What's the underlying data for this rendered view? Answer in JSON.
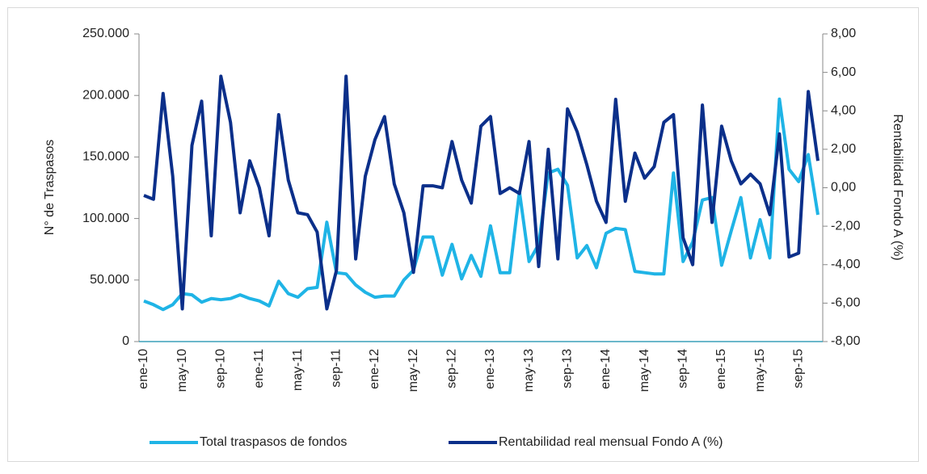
{
  "chart_data": {
    "type": "line",
    "y_label": "N° de Traspasos",
    "y2_label": "Rentabilidad Fondo A (%)",
    "categories": [
      "ene-10",
      null,
      null,
      null,
      "may-10",
      null,
      null,
      null,
      "sep-10",
      null,
      null,
      null,
      "ene-11",
      null,
      null,
      null,
      "may-11",
      null,
      null,
      null,
      "sep-11",
      null,
      null,
      null,
      "ene-12",
      null,
      null,
      null,
      "may-12",
      null,
      null,
      null,
      "sep-12",
      null,
      null,
      null,
      "ene-13",
      null,
      null,
      null,
      "may-13",
      null,
      null,
      null,
      "sep-13",
      null,
      null,
      null,
      "ene-14",
      null,
      null,
      null,
      "may-14",
      null,
      null,
      null,
      "sep-14",
      null,
      null,
      null,
      "ene-15",
      null,
      null,
      null,
      "may-15",
      null,
      null,
      null,
      "sep-15",
      null,
      null
    ],
    "series": [
      {
        "name": "Total traspasos de fondos",
        "color": "#1fb4e6",
        "axis": "y",
        "values": [
          33000,
          30000,
          26000,
          30000,
          39000,
          38000,
          32000,
          35000,
          34000,
          35000,
          38000,
          35000,
          33000,
          29000,
          49000,
          39000,
          36000,
          43000,
          44000,
          97000,
          56000,
          55000,
          46000,
          40000,
          36000,
          37000,
          37000,
          50000,
          58000,
          85000,
          85000,
          54000,
          79000,
          51000,
          70000,
          53000,
          94000,
          56000,
          56000,
          122000,
          65000,
          79000,
          137000,
          140000,
          127000,
          68000,
          78000,
          60000,
          88000,
          92000,
          91000,
          57000,
          56000,
          55000,
          55000,
          137000,
          65000,
          81000,
          115000,
          117000,
          62000,
          90000,
          117000,
          68000,
          99000,
          68000,
          197000,
          140000,
          130000,
          152000,
          103000
        ]
      },
      {
        "name": "Rentabilidad real mensual Fondo A (%)",
        "color": "#0b2f8a",
        "axis": "y2",
        "values": [
          -0.4,
          -0.6,
          4.9,
          0.6,
          -6.3,
          2.2,
          4.5,
          -2.5,
          5.8,
          3.4,
          -1.3,
          1.4,
          0,
          -2.5,
          3.8,
          0.4,
          -1.3,
          -1.4,
          -2.3,
          -6.3,
          -4.3,
          5.8,
          -3.7,
          0.6,
          2.5,
          3.7,
          0.2,
          -1.3,
          -4.4,
          0.1,
          0.1,
          0,
          2.4,
          0.4,
          -0.8,
          3.2,
          3.7,
          -0.3,
          0,
          -0.3,
          2.4,
          -4.1,
          2,
          -3.7,
          4.1,
          2.9,
          1.2,
          -0.7,
          -1.8,
          4.6,
          -0.7,
          1.8,
          0.5,
          1.1,
          3.4,
          3.8,
          -2.6,
          -4,
          4.3,
          -1.8,
          3.2,
          1.4,
          0.2,
          0.7,
          0.2,
          -1.4,
          2.8,
          -3.6,
          -3.4,
          5,
          1.4
        ]
      }
    ],
    "ylim": [
      0,
      250000
    ],
    "yticks": [
      0,
      {
        "value": 50000,
        "label": "50.000"
      },
      {
        "value": 100000,
        "label": "100.000"
      },
      {
        "value": 150000,
        "label": "150.000"
      },
      {
        "value": 200000,
        "label": "200.000"
      },
      {
        "value": 250000,
        "label": "250.000"
      }
    ],
    "y2lim": [
      -8,
      8
    ],
    "y2ticks": [
      {
        "value": -8,
        "label": "-8,00"
      },
      {
        "value": -6,
        "label": "-6,00"
      },
      {
        "value": -4,
        "label": "-4,00"
      },
      {
        "value": -2,
        "label": "-2,00"
      },
      {
        "value": 0,
        "label": "0,00"
      },
      {
        "value": 2,
        "label": "2,00"
      },
      {
        "value": 4,
        "label": "4,00"
      },
      {
        "value": 6,
        "label": "6,00"
      },
      {
        "value": 8,
        "label": "8,00"
      }
    ],
    "grid": false,
    "legend": "bottom"
  }
}
